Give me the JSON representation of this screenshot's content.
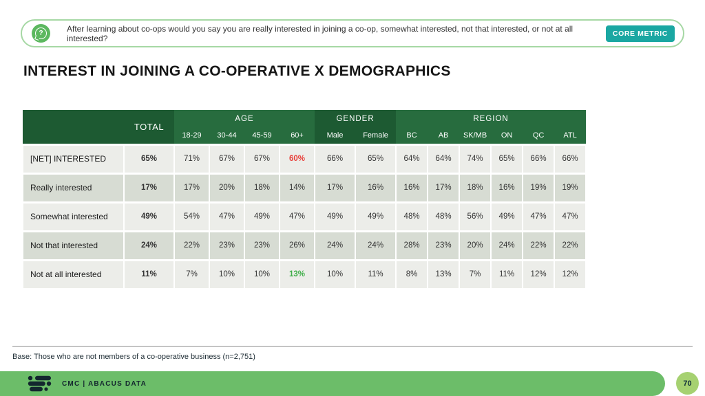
{
  "banner": {
    "question": "After learning about co-ops would you say you are really interested in joining a co-op, somewhat interested, not that interested, or not at all interested?",
    "badge": "CORE METRIC"
  },
  "title": "INTEREST IN JOINING A CO-OPERATIVE X DEMOGRAPHICS",
  "table": {
    "total_header": "TOTAL",
    "groups": [
      {
        "label": "AGE",
        "span": 4
      },
      {
        "label": "GENDER",
        "span": 2
      },
      {
        "label": "REGION",
        "span": 6
      }
    ],
    "columns": [
      "18-29",
      "30-44",
      "45-59",
      "60+",
      "Male",
      "Female",
      "BC",
      "AB",
      "SK/MB",
      "ON",
      "QC",
      "ATL"
    ],
    "rows": [
      {
        "label": "[NET] INTERESTED",
        "bold": true,
        "total": "65%",
        "values": [
          "71%",
          "67%",
          "67%",
          "60%",
          "66%",
          "65%",
          "64%",
          "64%",
          "74%",
          "65%",
          "66%",
          "66%"
        ],
        "value_colors": {
          "3": "#E8403A"
        }
      },
      {
        "label": "Really interested",
        "bold": false,
        "total": "17%",
        "values": [
          "17%",
          "20%",
          "18%",
          "14%",
          "17%",
          "16%",
          "16%",
          "17%",
          "18%",
          "16%",
          "19%",
          "19%"
        ],
        "value_colors": {}
      },
      {
        "label": "Somewhat interested",
        "bold": false,
        "total": "49%",
        "values": [
          "54%",
          "47%",
          "49%",
          "47%",
          "49%",
          "49%",
          "48%",
          "48%",
          "56%",
          "49%",
          "47%",
          "47%"
        ],
        "value_colors": {}
      },
      {
        "label": "Not that interested",
        "bold": false,
        "total": "24%",
        "values": [
          "22%",
          "23%",
          "23%",
          "26%",
          "24%",
          "24%",
          "28%",
          "23%",
          "20%",
          "24%",
          "22%",
          "22%"
        ],
        "value_colors": {}
      },
      {
        "label": "Not at all interested",
        "bold": false,
        "total": "11%",
        "values": [
          "7%",
          "10%",
          "10%",
          "13%",
          "10%",
          "11%",
          "8%",
          "13%",
          "7%",
          "11%",
          "12%",
          "12%"
        ],
        "value_colors": {
          "3": "#3FAE49"
        }
      }
    ]
  },
  "footer": {
    "base_note": "Base: Those who are not members of a co-operative business (n=2,751)",
    "brand": "CMC  |  ABACUS DATA",
    "page_number": "70"
  },
  "colors": {
    "header_dark": "#1D5A32",
    "header_light": "#276C3E",
    "row_light": "#ECEDE9",
    "row_shaded": "#D7DCD3",
    "accent_teal": "#1AA7A2",
    "highlight_red": "#E8403A",
    "highlight_green": "#3FAE49",
    "footer_bar_green": "#6CBD69",
    "page_circle_green": "#A6D171",
    "banner_border_green": "#A6D8A4",
    "icon_green": "#5CB85F"
  }
}
